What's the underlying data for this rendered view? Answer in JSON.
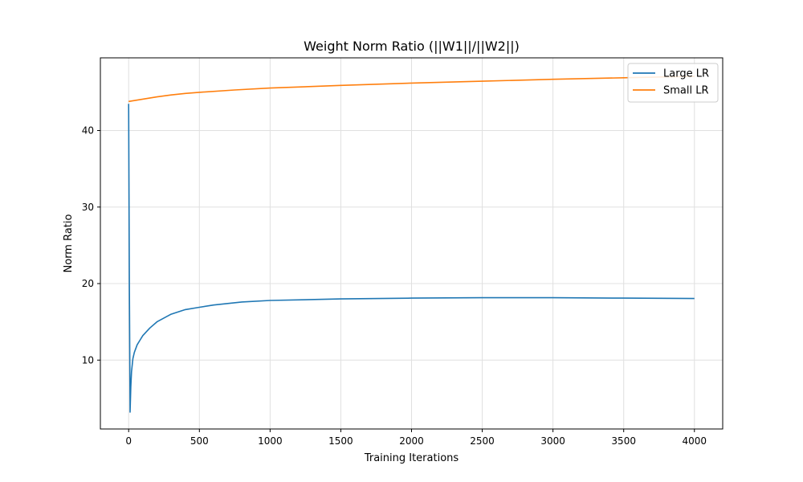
{
  "chart_data": {
    "type": "line",
    "title": "Weight Norm Ratio (||W1||/||W2||)",
    "xlabel": "Training Iterations",
    "ylabel": "Norm Ratio",
    "xlim": [
      -200,
      4200
    ],
    "ylim": [
      1.0,
      49.5
    ],
    "xticks": [
      0,
      500,
      1000,
      1500,
      2000,
      2500,
      3000,
      3500,
      4000
    ],
    "yticks": [
      10,
      20,
      30,
      40
    ],
    "grid": true,
    "legend_position": "top-right",
    "series": [
      {
        "name": "Large LR",
        "color": "#1f77b4",
        "x": [
          0,
          5,
          10,
          15,
          20,
          30,
          40,
          60,
          80,
          100,
          150,
          200,
          300,
          400,
          500,
          600,
          800,
          1000,
          1500,
          2000,
          2500,
          3000,
          3500,
          4000
        ],
        "y": [
          43.5,
          20,
          3.2,
          6.5,
          8.5,
          10.2,
          11.0,
          12.0,
          12.6,
          13.2,
          14.2,
          15.0,
          16.0,
          16.6,
          16.9,
          17.2,
          17.6,
          17.8,
          18.0,
          18.1,
          18.15,
          18.15,
          18.1,
          18.05
        ]
      },
      {
        "name": "Small LR",
        "color": "#ff7f0e",
        "x": [
          0,
          100,
          200,
          300,
          400,
          500,
          750,
          1000,
          1500,
          2000,
          2500,
          3000,
          3500,
          4000
        ],
        "y": [
          43.8,
          44.1,
          44.4,
          44.65,
          44.85,
          45.0,
          45.3,
          45.55,
          45.9,
          46.2,
          46.45,
          46.7,
          46.9,
          47.1
        ]
      }
    ]
  }
}
